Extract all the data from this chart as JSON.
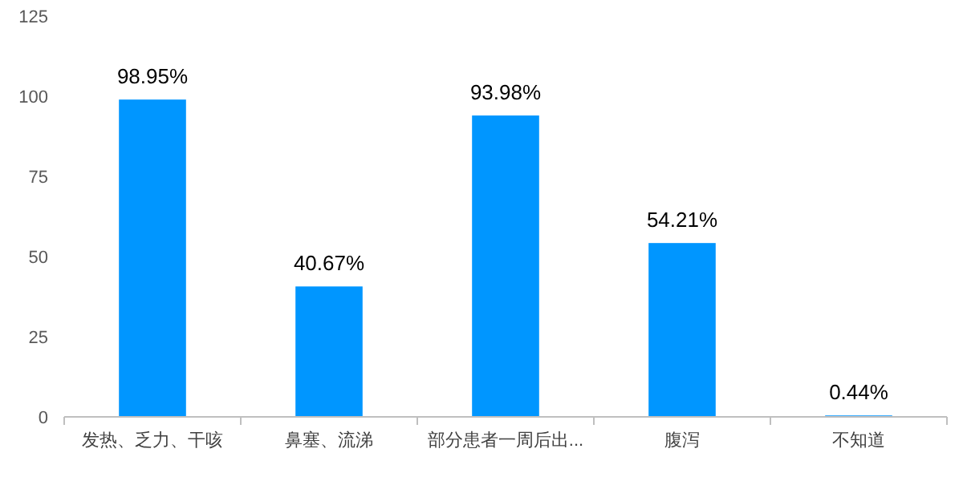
{
  "chart_data": {
    "type": "bar",
    "categories": [
      "发热、乏力、干咳",
      "鼻塞、流涕",
      "部分患者一周后出...",
      "腹泻",
      "不知道"
    ],
    "values": [
      98.95,
      40.67,
      93.98,
      54.21,
      0.44
    ],
    "value_labels": [
      "98.95%",
      "40.67%",
      "93.98%",
      "54.21%",
      "0.44%"
    ],
    "color": "#0096ff",
    "ylim": [
      0,
      125
    ],
    "yticks": [
      0,
      25,
      50,
      75,
      100,
      125
    ],
    "grid": false
  }
}
